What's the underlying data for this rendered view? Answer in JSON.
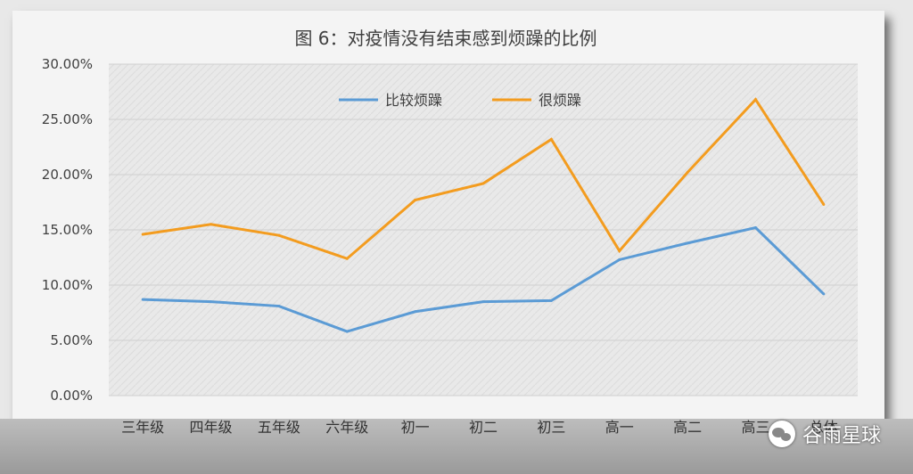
{
  "chart_data": {
    "type": "line",
    "title": "图 6：对疫情没有结束感到烦躁的比例",
    "categories": [
      "三年级",
      "四年级",
      "五年级",
      "六年级",
      "初一",
      "初二",
      "初三",
      "高一",
      "高二",
      "高三",
      "总体"
    ],
    "series": [
      {
        "name": "比较烦躁",
        "color": "#5b9bd5",
        "values": [
          8.7,
          8.5,
          8.1,
          5.8,
          7.6,
          8.5,
          8.6,
          12.3,
          13.8,
          15.2,
          9.2
        ]
      },
      {
        "name": "很烦躁",
        "color": "#f39c1f",
        "values": [
          14.6,
          15.5,
          14.5,
          12.4,
          17.7,
          19.2,
          23.2,
          13.1,
          20.2,
          26.8,
          17.3
        ]
      }
    ],
    "ylim": [
      0,
      30
    ],
    "y_ticks": [
      "0.00%",
      "5.00%",
      "10.00%",
      "15.00%",
      "20.00%",
      "25.00%",
      "30.00%"
    ],
    "y_tick_values": [
      0,
      5,
      10,
      15,
      20,
      25,
      30
    ],
    "legend_position": "top-center",
    "grid": true
  },
  "watermark": {
    "text": "谷雨星球",
    "icon": "wechat-icon"
  }
}
